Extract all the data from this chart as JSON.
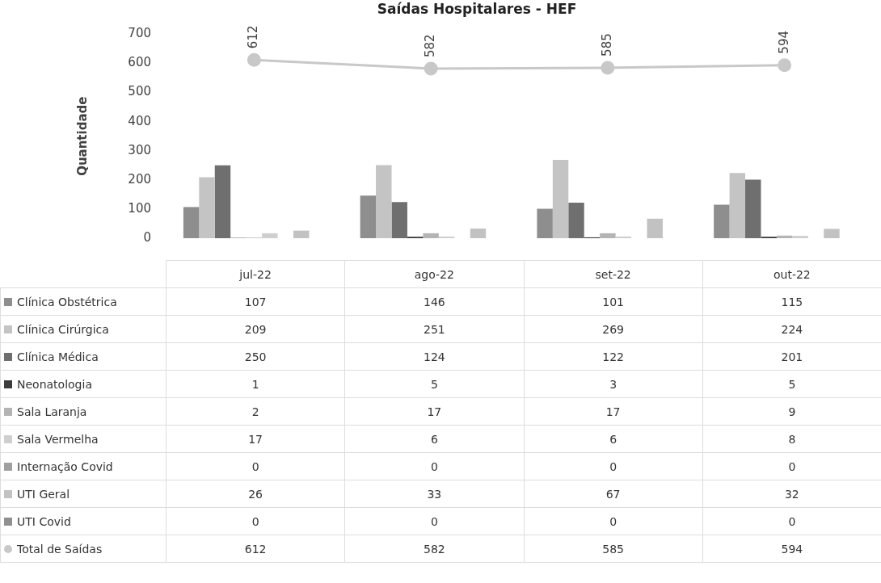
{
  "chart_data": {
    "type": "bar",
    "title": "Saídas Hospitalares - HEF",
    "ylabel": "Quantidade",
    "categories": [
      "jul-22",
      "ago-22",
      "set-22",
      "out-22"
    ],
    "ylim": [
      0,
      700
    ],
    "yticks": [
      0,
      100,
      200,
      300,
      400,
      500,
      600,
      700
    ],
    "grid": false,
    "legend": "bottom left",
    "data_labels": true,
    "series": [
      {
        "name": "Clínica Obstétrica",
        "color": "#8e8e8e",
        "values": [
          107,
          146,
          101,
          115
        ]
      },
      {
        "name": "Clínica Cirúrgica",
        "color": "#c4c4c4",
        "values": [
          209,
          251,
          269,
          224
        ]
      },
      {
        "name": "Clínica Médica",
        "color": "#6f6f6f",
        "values": [
          250,
          124,
          122,
          201
        ]
      },
      {
        "name": "Neonatologia",
        "color": "#3c3c3c",
        "values": [
          1,
          5,
          3,
          5
        ]
      },
      {
        "name": "Sala Laranja",
        "color": "#b4b4b4",
        "values": [
          2,
          17,
          17,
          9
        ]
      },
      {
        "name": "Sala Vermelha",
        "color": "#cfcfcf",
        "values": [
          17,
          6,
          6,
          8
        ]
      },
      {
        "name": "Internação Covid",
        "color": "#a0a0a0",
        "values": [
          0,
          0,
          0,
          0
        ]
      },
      {
        "name": "UTI Geral",
        "color": "#c2c2c2",
        "values": [
          26,
          33,
          67,
          32
        ]
      },
      {
        "name": "UTI Covid",
        "color": "#909090",
        "values": [
          0,
          0,
          0,
          0
        ]
      },
      {
        "name": "Total de Saídas",
        "type": "line",
        "marker": "circle",
        "color": "#c8c8c8",
        "values": [
          612,
          582,
          585,
          594
        ],
        "value_labels": [
          "612",
          "582",
          "585",
          "594"
        ]
      }
    ]
  }
}
